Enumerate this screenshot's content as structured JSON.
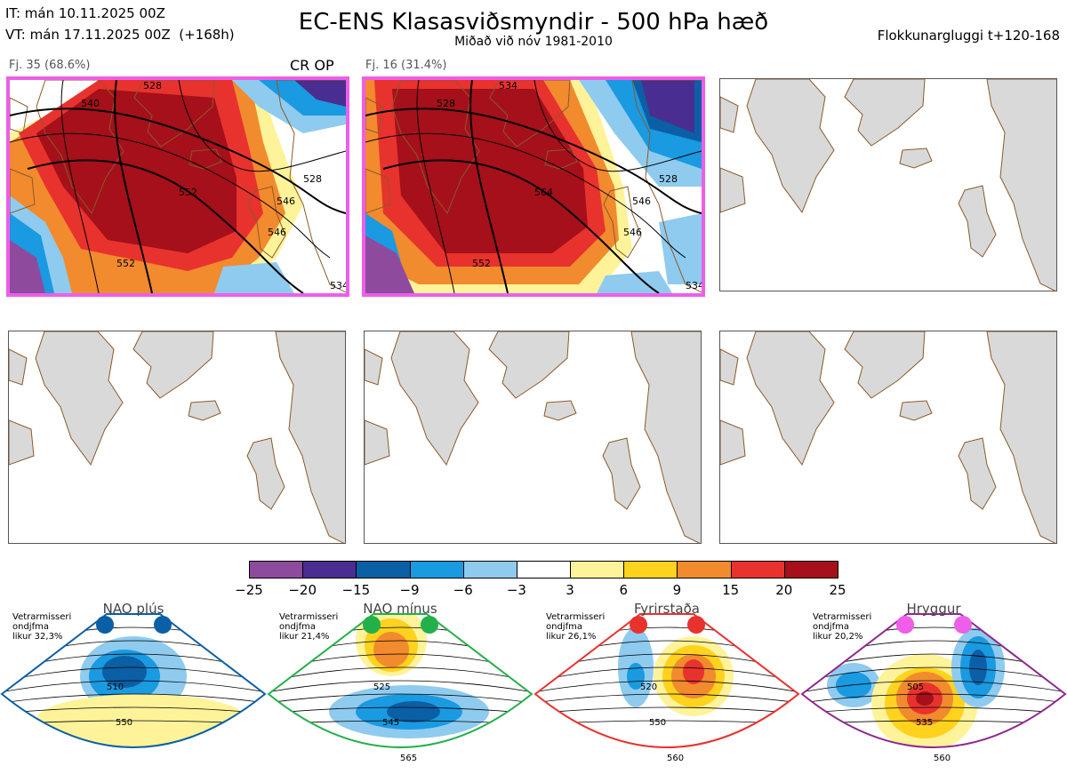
{
  "header": {
    "it_line": "IT: mán 10.11.2025 00Z",
    "vt_line": "VT: mán 17.11.2025 00Z  (+168h)",
    "title": "EC-ENS Klasasviðsmyndir - 500 hPa hæð",
    "subtitle": "Miðað við nóv 1981-2010",
    "window": "Flokkunargluggi t+120-168"
  },
  "colors": {
    "highlight_border": "#ee5ee8",
    "land": "#d9d9d9",
    "coast": "#8a5a2b"
  },
  "panels": [
    {
      "label": "Fj. 35 (68.6%)",
      "tag": "CR OP",
      "highlighted": true,
      "contour_labels": [
        "528",
        "540",
        "546",
        "546",
        "552",
        "552",
        "528",
        "534"
      ]
    },
    {
      "label": "Fj. 16 (31.4%)",
      "tag": "",
      "highlighted": true,
      "contour_labels": [
        "534",
        "528",
        "546",
        "546",
        "552",
        "564",
        "528",
        "534"
      ]
    },
    {
      "label": "",
      "tag": "",
      "highlighted": false
    },
    {
      "label": "",
      "tag": "",
      "highlighted": false
    },
    {
      "label": "",
      "tag": "",
      "highlighted": false
    },
    {
      "label": "",
      "tag": "",
      "highlighted": false
    }
  ],
  "colorbar": {
    "ticks": [
      "−25",
      "−20",
      "−15",
      "−9",
      "−6",
      "−3",
      "3",
      "6",
      "9",
      "15",
      "20",
      "25"
    ],
    "colors": [
      "#8e4b9e",
      "#4a2d90",
      "#0b5fa5",
      "#1a9ae0",
      "#8ecbef",
      "#ffffff",
      "#fff39a",
      "#ffd21e",
      "#f28a2e",
      "#e8322e",
      "#a5101a"
    ]
  },
  "chart_data": {
    "type": "heatmap",
    "title": "EC-ENS Klasasviðsmyndir - 500 hPa hæð",
    "subtitle": "Miðað við nóv 1981-2010",
    "colorbar_bounds": [
      -25,
      -20,
      -15,
      -9,
      -6,
      -3,
      3,
      6,
      9,
      15,
      20,
      25
    ],
    "clusters": [
      {
        "name": "Fj. 35",
        "members": 35,
        "percent": 68.6
      },
      {
        "name": "Fj. 16",
        "members": 16,
        "percent": 31.4
      }
    ],
    "regimes": [
      {
        "name": "NAO plús",
        "probability_label": "likur 32,3%",
        "contour_labels": [
          "510",
          "550"
        ],
        "dot_color": "#0b5fa5"
      },
      {
        "name": "NAO mínus",
        "probability_label": "likur 21,4%",
        "contour_labels": [
          "525",
          "545",
          "565"
        ],
        "dot_color": "#22b04a"
      },
      {
        "name": "Fyrirstaða",
        "probability_label": "likur 26,1%",
        "contour_labels": [
          "520",
          "550",
          "560"
        ],
        "dot_color": "#e8322e"
      },
      {
        "name": "Hryggur",
        "probability_label": "likur 20,2%",
        "contour_labels": [
          "505",
          "535",
          "560"
        ],
        "dot_color": "#ee5ee8"
      }
    ]
  },
  "regimes": [
    {
      "title": "NAO plús",
      "note": "Vetrarmisseri\nondjfma\nlikur 32,3%",
      "color": "#0b5fa5",
      "dots": 2,
      "labels": [
        "510",
        "550"
      ]
    },
    {
      "title": "NAO mínus",
      "note": "Vetrarmisseri\nondjfma\nlikur 21,4%",
      "color": "#22b04a",
      "dots": 2,
      "labels": [
        "525",
        "545",
        "565"
      ]
    },
    {
      "title": "Fyrirstaða",
      "note": "Vetrarmisseri\nondjfma\nlikur 26,1%",
      "color": "#e8322e",
      "dots": 2,
      "labels": [
        "520",
        "550",
        "560"
      ]
    },
    {
      "title": "Hryggur",
      "note": "Vetrarmisseri\nondjfma\nlikur 20,2%",
      "color": "#8e2a8e",
      "dots": 2,
      "dotcolor": "#ee5ee8",
      "labels": [
        "505",
        "535",
        "560"
      ]
    }
  ]
}
